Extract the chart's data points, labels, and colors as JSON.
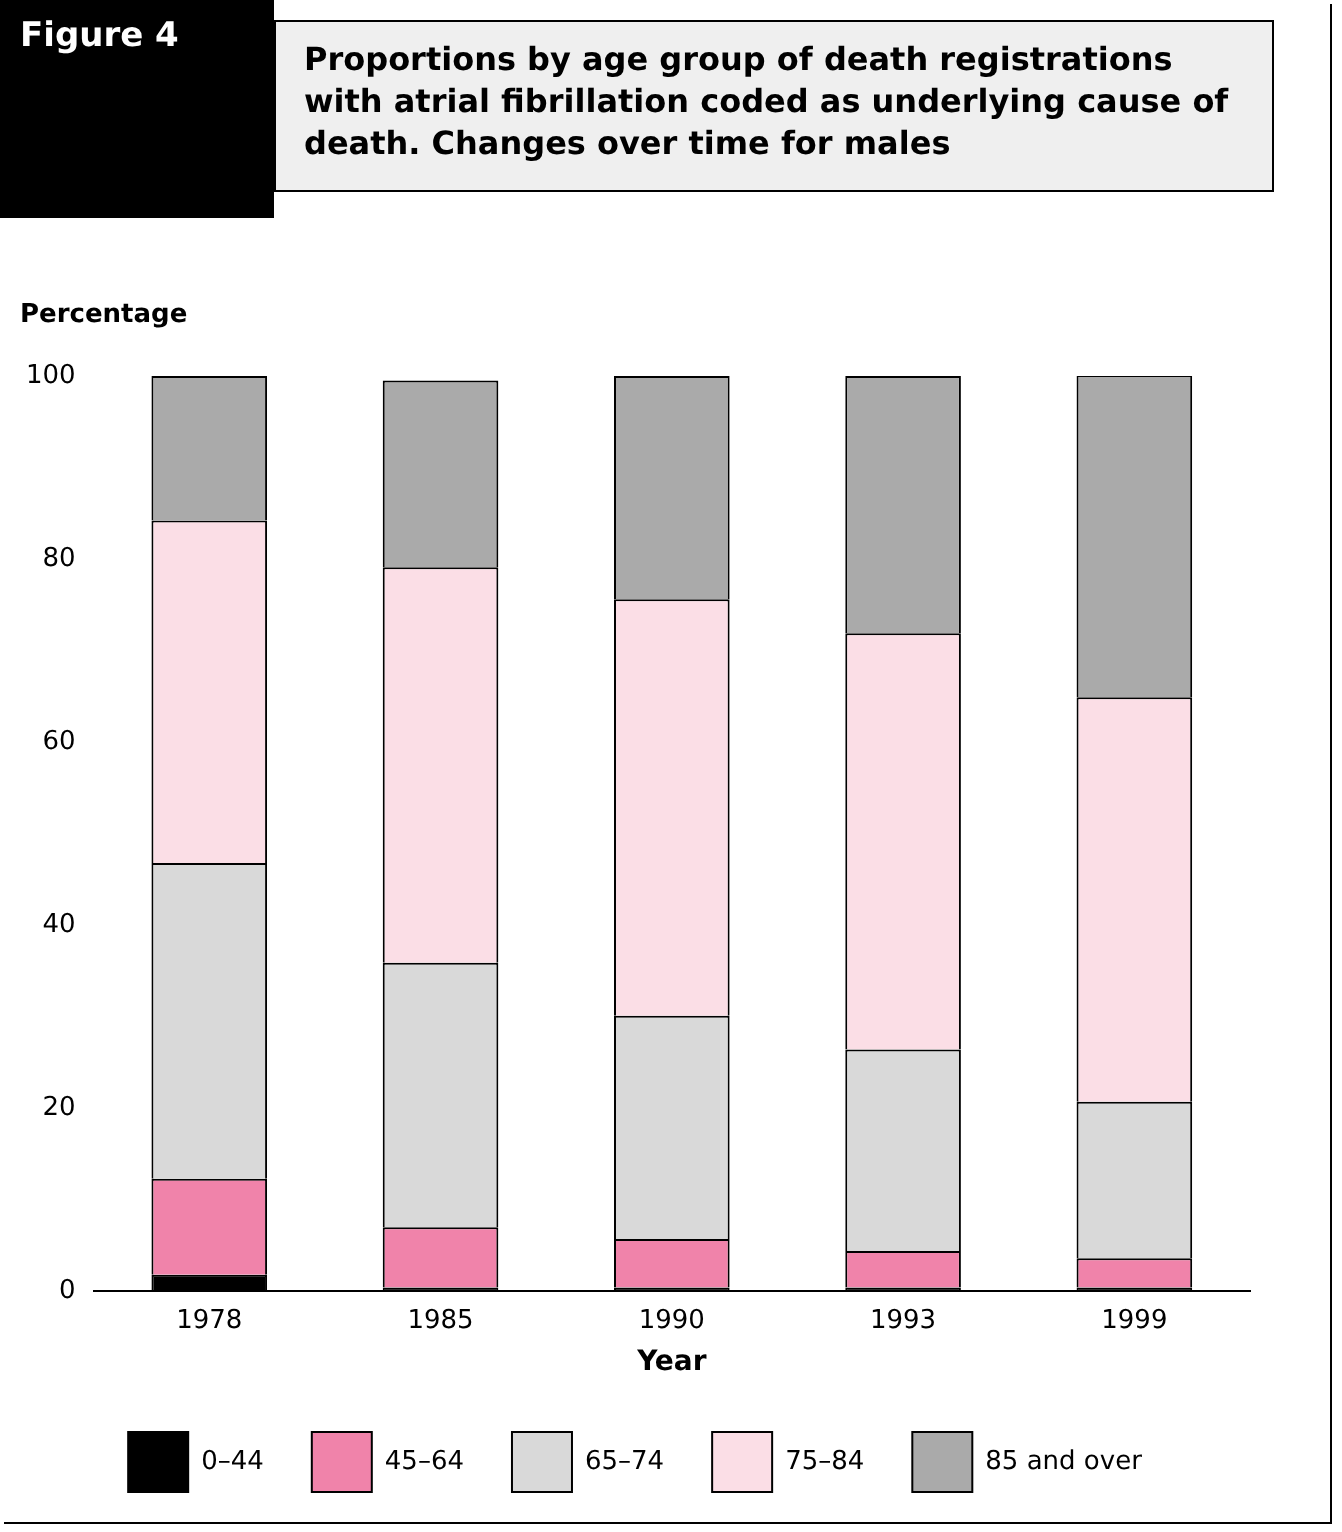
{
  "chart_data": {
    "type": "bar",
    "stacked": true,
    "title": "Proportions by age group of death registrations with atrial fibrillation coded as underlying cause of death. Changes over time for males",
    "annotations": [
      "Figure 4"
    ],
    "xlabel": "Year",
    "ylabel": "Percentage",
    "categories": [
      "1978",
      "1985",
      "1990",
      "1993",
      "1999"
    ],
    "series": [
      {
        "name": "0–44",
        "color": "#000000",
        "values": [
          1.8,
          0.4,
          0.4,
          0.4,
          0.4
        ]
      },
      {
        "name": "45–64",
        "color": "#f083aa",
        "values": [
          10.5,
          6.6,
          5.3,
          4.0,
          3.2
        ]
      },
      {
        "name": "65–74",
        "color": "#d9d9d9",
        "values": [
          34.5,
          28.9,
          24.4,
          22.0,
          17.1
        ]
      },
      {
        "name": "75–84",
        "color": "#fbdee6",
        "values": [
          37.4,
          43.2,
          45.5,
          45.5,
          44.2
        ]
      },
      {
        "name": "85 and over",
        "color": "#aaaaaa",
        "values": [
          15.8,
          20.4,
          24.4,
          28.1,
          35.2
        ]
      }
    ],
    "ylim": [
      0,
      100
    ],
    "yticks": [
      0,
      20,
      40,
      60,
      80,
      100
    ],
    "grid": false,
    "legend": "bottom"
  }
}
